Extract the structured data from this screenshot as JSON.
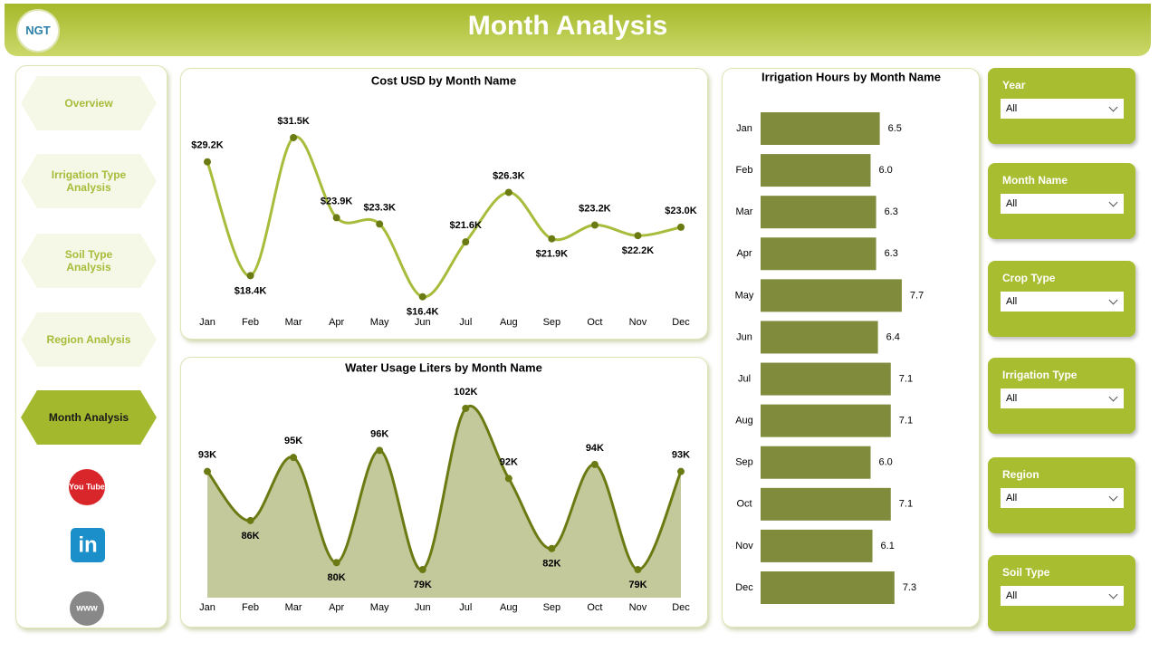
{
  "header": {
    "title": "Month Analysis",
    "logo": "NGT"
  },
  "nav": {
    "items": [
      "Overview",
      "Irrigation Type Analysis",
      "Soil Type Analysis",
      "Region Analysis",
      "Month Analysis"
    ],
    "active": 4,
    "icons": [
      "You Tube",
      "in",
      "www"
    ]
  },
  "filters": [
    {
      "label": "Year",
      "value": "All"
    },
    {
      "label": "Month Name",
      "value": "All"
    },
    {
      "label": "Crop Type",
      "value": "All"
    },
    {
      "label": "Irrigation Type",
      "value": "All"
    },
    {
      "label": "Region",
      "value": "All"
    },
    {
      "label": "Soil Type",
      "value": "All"
    }
  ],
  "chart_data": [
    {
      "type": "line",
      "title": "Cost USD by Month Name",
      "categories": [
        "Jan",
        "Feb",
        "Mar",
        "Apr",
        "May",
        "Jun",
        "Jul",
        "Aug",
        "Sep",
        "Oct",
        "Nov",
        "Dec"
      ],
      "values": [
        29200,
        18400,
        31500,
        23900,
        23300,
        16400,
        21600,
        26300,
        21900,
        23200,
        22200,
        23000
      ],
      "value_labels": [
        "$29.2K",
        "$18.4K",
        "$31.5K",
        "$23.9K",
        "$23.3K",
        "$16.4K",
        "$21.6K",
        "$26.3K",
        "$21.9K",
        "$23.2K",
        "$22.2K",
        "$23.0K"
      ],
      "ylim": [
        15000,
        33000
      ],
      "color": "#a9bb3a",
      "marker_color": "#6b7a12"
    },
    {
      "type": "area",
      "title": "Water Usage Liters by Month Name",
      "categories": [
        "Jan",
        "Feb",
        "Mar",
        "Apr",
        "May",
        "Jun",
        "Jul",
        "Aug",
        "Sep",
        "Oct",
        "Nov",
        "Dec"
      ],
      "values": [
        93000,
        86000,
        95000,
        80000,
        96000,
        79000,
        102000,
        92000,
        82000,
        94000,
        79000,
        93000
      ],
      "value_labels": [
        "93K",
        "86K",
        "95K",
        "80K",
        "96K",
        "79K",
        "102K",
        "92K",
        "82K",
        "94K",
        "79K",
        "93K"
      ],
      "ylim": [
        75000,
        104000
      ],
      "color": "#6b7a12",
      "fill": "#c4c99c"
    },
    {
      "type": "bar",
      "orientation": "horizontal",
      "title": "Irrigation Hours by Month Name",
      "categories": [
        "Jan",
        "Feb",
        "Mar",
        "Apr",
        "May",
        "Jun",
        "Jul",
        "Aug",
        "Sep",
        "Oct",
        "Nov",
        "Dec"
      ],
      "values": [
        6.5,
        6.0,
        6.3,
        6.3,
        7.7,
        6.4,
        7.1,
        7.1,
        6.0,
        7.1,
        6.1,
        7.3
      ],
      "value_labels": [
        "6.5",
        "6.0",
        "6.3",
        "6.3",
        "7.7",
        "6.4",
        "7.1",
        "7.1",
        "6.0",
        "7.1",
        "6.1",
        "7.3"
      ],
      "xlim": [
        0,
        8
      ],
      "color": "#808c3c"
    }
  ]
}
